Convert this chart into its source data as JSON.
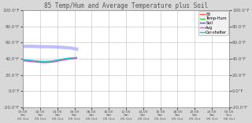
{
  "title": "85 Temp/Hum and Average Temperature plus Soil",
  "background_color": "#d8d8d8",
  "plot_bg_color": "#ffffff",
  "grid_color": "#bbbbbb",
  "ylim": [
    -20,
    100
  ],
  "yticks": [
    -20,
    0,
    20,
    40,
    60,
    80,
    100
  ],
  "ytick_labels": [
    "-20.0 F",
    "0.0 F",
    "20.0 F",
    "40.0 F",
    "60.0 F",
    "80.0 F",
    "100.0 F"
  ],
  "xlim": [
    0,
    24
  ],
  "x_tick_hours": [
    0,
    2,
    4,
    6,
    8,
    10,
    12,
    14,
    16,
    18,
    20,
    22,
    24
  ],
  "x_tick_labels": [
    "00:00\nSat\n05 Oct",
    "02:00\nSat\n05 Oct",
    "04:00\nSat\n05 Oct",
    "06:00\nSat\n05 Oct",
    "08:00\nSat\n05 Oct",
    "10:00\nSat\n05 Oct",
    "12:00\nSat\n05 Oct",
    "14:00\nSat\n05 Oct",
    "16:00\nSat\n05 Oct",
    "18:00\nSat\n05 Oct",
    "20:00\nSat\n05 Oct",
    "22:00\nSat\n05 Oct",
    "00:00\nSun\n06 Oct"
  ],
  "legend_entries": [
    {
      "label": "85",
      "color": "#ff5555",
      "lw": 1.0
    },
    {
      "label": "Temp-Hum",
      "color": "#44cc44",
      "lw": 1.0
    },
    {
      "label": "Soil",
      "color": "#5555ff",
      "lw": 1.0
    },
    {
      "label": "Avg",
      "color": "#ee55ee",
      "lw": 1.0
    },
    {
      "label": "Car-shelter",
      "color": "#00dddd",
      "lw": 1.0
    }
  ],
  "lines": {
    "soil": {
      "color": "#aaaaff",
      "alpha": 0.75,
      "lw": 3.0,
      "x": [
        0.0,
        0.5,
        1.0,
        1.5,
        2.0,
        2.5,
        3.0,
        3.5,
        4.0,
        4.5,
        5.0,
        5.5,
        6.0,
        6.25
      ],
      "y": [
        55.5,
        55.5,
        55.5,
        55.3,
        55.0,
        55.0,
        55.0,
        54.8,
        54.5,
        54.2,
        53.8,
        53.5,
        52.5,
        52.0
      ]
    },
    "temp_hum": {
      "color": "#44cc44",
      "alpha": 0.9,
      "lw": 1.0,
      "x": [
        0.0,
        0.5,
        1.0,
        1.5,
        2.0,
        2.5,
        3.0,
        3.5,
        4.0,
        4.5,
        5.0,
        5.5,
        6.0,
        6.25
      ],
      "y": [
        38.0,
        37.5,
        37.0,
        36.5,
        36.0,
        35.8,
        36.0,
        36.5,
        37.5,
        38.5,
        39.5,
        40.0,
        40.5,
        41.0
      ]
    },
    "avg": {
      "color": "#dd44dd",
      "alpha": 0.9,
      "lw": 1.0,
      "x": [
        0.0,
        0.5,
        1.0,
        1.5,
        2.0,
        2.5,
        3.0,
        3.5,
        4.0,
        4.5,
        5.0,
        5.5,
        6.0,
        6.25
      ],
      "y": [
        37.5,
        37.0,
        36.5,
        36.0,
        35.5,
        35.2,
        35.5,
        36.0,
        37.0,
        38.0,
        39.0,
        39.8,
        40.3,
        40.8
      ]
    },
    "bs": {
      "color": "#ff5555",
      "alpha": 0.9,
      "lw": 1.0,
      "x": [
        0.0,
        0.5,
        1.0,
        1.5,
        2.0,
        2.5,
        3.0,
        3.5,
        4.0,
        4.5,
        5.0,
        5.5,
        6.0,
        6.25
      ],
      "y": [
        38.5,
        38.0,
        37.5,
        37.0,
        36.5,
        36.2,
        36.5,
        37.0,
        38.0,
        39.0,
        40.0,
        40.5,
        41.0,
        41.2
      ]
    },
    "car_shelter": {
      "color": "#00dddd",
      "alpha": 0.9,
      "lw": 1.0,
      "x": [
        0.0,
        0.5,
        1.0,
        1.5,
        2.0,
        2.5,
        3.0,
        3.5,
        4.0,
        4.5,
        5.0,
        5.5,
        6.0,
        6.25
      ],
      "y": [
        39.0,
        38.5,
        38.0,
        37.5,
        37.0,
        36.8,
        37.0,
        37.5,
        38.5,
        39.5,
        40.5,
        41.0,
        41.5,
        41.8
      ]
    }
  },
  "title_fontsize": 5.5,
  "tick_fontsize": 4.0,
  "xtick_fontsize": 3.2,
  "legend_fontsize": 3.5,
  "tick_color": "#555555",
  "title_color": "#555555"
}
